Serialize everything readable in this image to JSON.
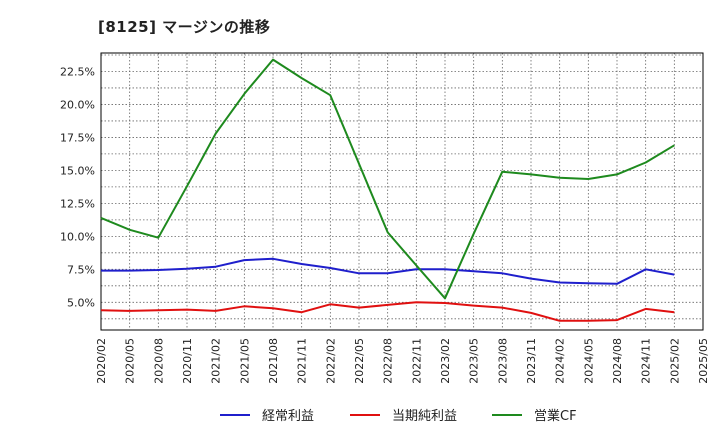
{
  "chart_data": {
    "type": "line",
    "title": "[8125]  マージンの推移",
    "xlabel": "",
    "ylabel": "",
    "ylim": [
      2.9,
      23.9
    ],
    "yticks": [
      5.0,
      7.5,
      10.0,
      12.5,
      15.0,
      17.5,
      20.0,
      22.5
    ],
    "ytick_labels": [
      "5.0%",
      "7.5%",
      "10.0%",
      "12.5%",
      "15.0%",
      "17.5%",
      "20.0%",
      "22.5%"
    ],
    "categories": [
      "2020/02",
      "2020/05",
      "2020/08",
      "2020/11",
      "2021/02",
      "2021/05",
      "2021/08",
      "2021/11",
      "2022/02",
      "2022/05",
      "2022/08",
      "2022/11",
      "2023/02",
      "2023/05",
      "2023/08",
      "2023/11",
      "2024/02",
      "2024/05",
      "2024/08",
      "2024/11",
      "2025/02",
      "2025/05"
    ],
    "grid": true,
    "legend_position": "bottom",
    "series": [
      {
        "name": "経常利益",
        "color": "#1f1fcc",
        "values": [
          7.4,
          7.4,
          7.45,
          7.55,
          7.7,
          8.2,
          8.3,
          7.9,
          7.6,
          7.2,
          7.2,
          7.5,
          7.5,
          7.35,
          7.2,
          6.8,
          6.5,
          6.45,
          6.4,
          7.5,
          7.1,
          null
        ]
      },
      {
        "name": "当期純利益",
        "color": "#e01010",
        "values": [
          4.4,
          4.35,
          4.4,
          4.45,
          4.35,
          4.7,
          4.55,
          4.25,
          4.85,
          4.6,
          4.8,
          5.0,
          4.95,
          4.75,
          4.6,
          4.2,
          3.6,
          3.6,
          3.65,
          4.5,
          4.25,
          null
        ]
      },
      {
        "name": "営業CF",
        "color": "#1e8a1e",
        "values": [
          11.4,
          10.5,
          9.9,
          13.8,
          17.8,
          20.8,
          23.4,
          22.0,
          20.7,
          15.5,
          10.3,
          7.8,
          5.3,
          10.2,
          14.9,
          14.7,
          14.45,
          14.35,
          14.7,
          15.6,
          16.9,
          null
        ]
      }
    ]
  }
}
